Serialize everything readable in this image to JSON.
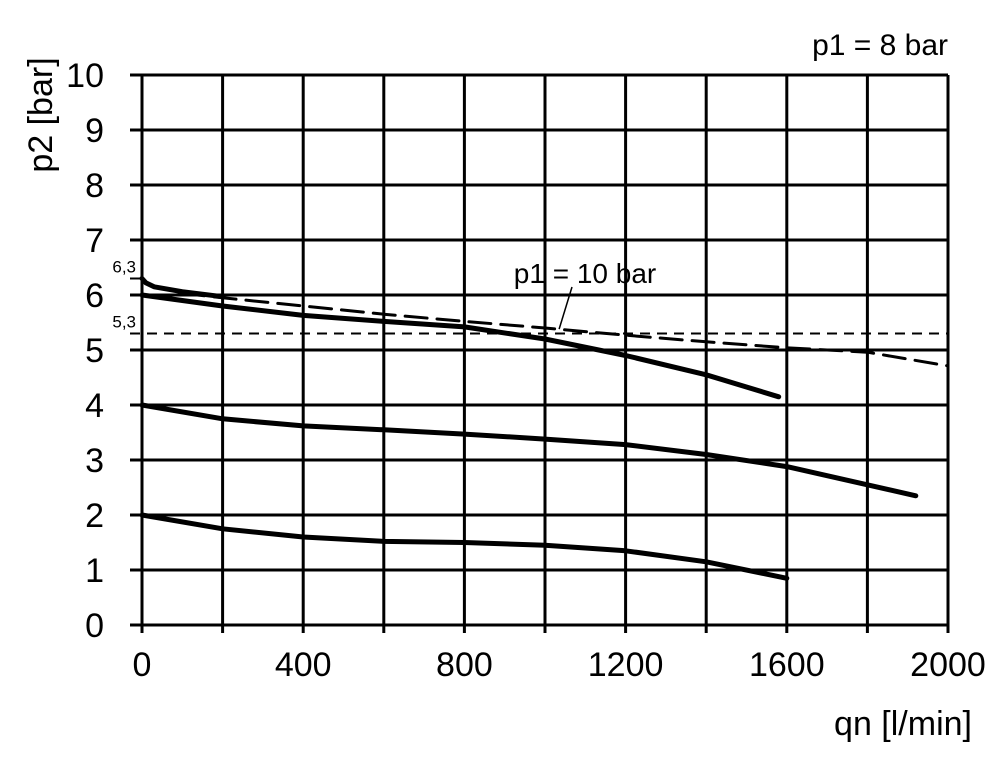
{
  "chart_data": {
    "type": "line",
    "title": "p1 = 8 bar",
    "xlabel": "qn [l/min]",
    "ylabel": "p2 [bar]",
    "xlim": [
      0,
      2000
    ],
    "ylim": [
      0,
      10
    ],
    "xticks": [
      0,
      400,
      800,
      1200,
      1600,
      2000
    ],
    "yticks": [
      0,
      1,
      2,
      3,
      4,
      5,
      6,
      7,
      8,
      9,
      10
    ],
    "grid": true,
    "grid_x_step": 200,
    "grid_y_step": 1,
    "reference_lines": [
      {
        "y": 6.3,
        "label": "6,3"
      },
      {
        "y": 5.3,
        "label": "5,3",
        "dashed": true
      }
    ],
    "annotation": {
      "text": "p1 = 10 bar",
      "x": 1040,
      "y": 5.38
    },
    "series": [
      {
        "style": "solid",
        "points": [
          [
            0,
            6.3
          ],
          [
            10,
            6.22
          ],
          [
            30,
            6.15
          ],
          [
            100,
            6.06
          ],
          [
            200,
            5.97
          ]
        ]
      },
      {
        "style": "dashed",
        "points": [
          [
            100,
            6.03
          ],
          [
            200,
            5.95
          ],
          [
            400,
            5.8
          ],
          [
            600,
            5.65
          ],
          [
            800,
            5.52
          ],
          [
            1000,
            5.4
          ],
          [
            1200,
            5.27
          ],
          [
            1400,
            5.15
          ],
          [
            1600,
            5.04
          ],
          [
            1800,
            4.96
          ],
          [
            2000,
            4.71
          ]
        ]
      },
      {
        "style": "solid",
        "points": [
          [
            0,
            6.0
          ],
          [
            200,
            5.8
          ],
          [
            400,
            5.63
          ],
          [
            600,
            5.52
          ],
          [
            800,
            5.42
          ],
          [
            1000,
            5.2
          ],
          [
            1200,
            4.9
          ],
          [
            1400,
            4.55
          ],
          [
            1580,
            4.15
          ]
        ]
      },
      {
        "style": "solid",
        "points": [
          [
            0,
            4.0
          ],
          [
            200,
            3.75
          ],
          [
            400,
            3.62
          ],
          [
            600,
            3.55
          ],
          [
            800,
            3.47
          ],
          [
            1000,
            3.38
          ],
          [
            1200,
            3.28
          ],
          [
            1400,
            3.1
          ],
          [
            1600,
            2.88
          ],
          [
            1920,
            2.35
          ]
        ]
      },
      {
        "style": "solid",
        "points": [
          [
            0,
            2.0
          ],
          [
            200,
            1.75
          ],
          [
            400,
            1.6
          ],
          [
            600,
            1.52
          ],
          [
            800,
            1.5
          ],
          [
            1000,
            1.45
          ],
          [
            1200,
            1.35
          ],
          [
            1400,
            1.15
          ],
          [
            1600,
            0.85
          ]
        ]
      }
    ]
  }
}
